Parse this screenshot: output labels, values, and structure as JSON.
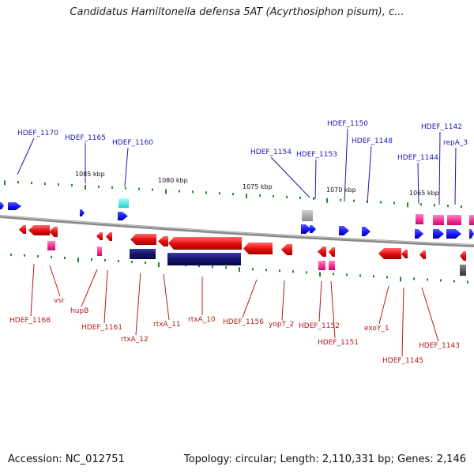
{
  "title": "Candidatus Hamiltonella defensa 5AT (Acyrthosiphon pisum), c...",
  "footer": {
    "accession": "Accession: NC_012751",
    "topology": "Topology: circular; Length: 2,110,331 bp; Genes: 2,146"
  },
  "colors": {
    "forward_label": "#1a1ab3",
    "reverse_label": "#b31a1a",
    "forward_gene": "#1a1aff",
    "reverse_gene": "#e81010",
    "rna": "#ff3399",
    "backbone": "#8a8a8a",
    "tick": "#228822"
  },
  "scale_labels": [
    "1085 kbp",
    "1080 kbp",
    "1075 kbp",
    "1070 kbp",
    "1065 kbp"
  ],
  "upper_labels": [
    "HDEF_1170",
    "HDEF_1165",
    "HDEF_1160",
    "HDEF_1154",
    "HDEF_1153",
    "HDEF_1150",
    "HDEF_1148",
    "HDEF_1144",
    "HDEF_1142",
    "repA_3"
  ],
  "lower_labels": [
    "HDEF_1168",
    "vsr",
    "hupB",
    "HDEF_1161",
    "rtxA_12",
    "rtxA_11",
    "rtxA_10",
    "HDEF_1156",
    "yopT_2",
    "HDEF_1152",
    "HDEF_1151",
    "exoY_1",
    "HDEF_1145",
    "HDEF_1143"
  ]
}
